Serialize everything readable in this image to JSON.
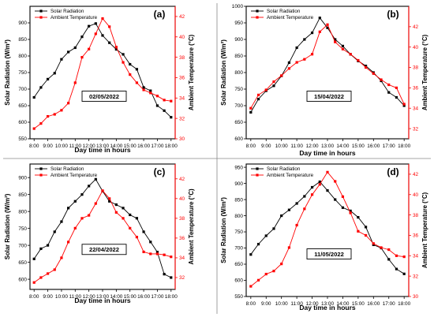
{
  "figure": {
    "divider_color": "#888888"
  },
  "colors": {
    "solar": "#000000",
    "temp": "#ff0000"
  },
  "chart_data": [
    {
      "panel": "(a)",
      "date": "02/05/2022",
      "type": "line",
      "xlabel": "Day time in hours",
      "ylabel_left": "Solar Radiation (W/m²)",
      "ylabel_right": "Ambient Temperature (°C)",
      "legend": [
        "Solar Radiation",
        "Ambient Temperature"
      ],
      "x_ticks": [
        "8:00",
        "9:00",
        "10:00",
        "11:00",
        "12:00",
        "13:00",
        "14:00",
        "15:00",
        "16:00",
        "17:00",
        "18:00"
      ],
      "y_left_range": [
        550,
        950
      ],
      "y_left_ticks": [
        550,
        600,
        650,
        700,
        750,
        800,
        850,
        900
      ],
      "y_right_range": [
        30,
        43
      ],
      "y_right_ticks": [
        30,
        32,
        34,
        36,
        38,
        40,
        42
      ],
      "series": [
        {
          "name": "Solar Radiation",
          "axis": "left",
          "color": "#000000",
          "marker": "square",
          "x": [
            8,
            8.5,
            9,
            9.5,
            10,
            10.5,
            11,
            11.5,
            12,
            12.5,
            13,
            13.5,
            14,
            14.5,
            15,
            15.5,
            16,
            16.5,
            17,
            17.5,
            18
          ],
          "y": [
            675,
            705,
            730,
            748,
            790,
            812,
            825,
            858,
            890,
            898,
            862,
            840,
            820,
            805,
            775,
            760,
            705,
            695,
            650,
            635,
            615
          ]
        },
        {
          "name": "Ambient Temperature",
          "axis": "right",
          "color": "#ff0000",
          "marker": "square",
          "x": [
            8,
            8.5,
            9,
            9.5,
            10,
            10.5,
            11,
            11.5,
            12,
            12.5,
            13,
            13.5,
            14,
            14.5,
            15,
            15.5,
            16,
            16.5,
            17,
            17.5,
            18
          ],
          "y": [
            31.0,
            31.5,
            32.2,
            32.4,
            32.8,
            33.5,
            35.5,
            38.0,
            38.8,
            40.3,
            41.8,
            41.0,
            39.0,
            37.5,
            36.3,
            35.5,
            34.8,
            34.5,
            34.2,
            33.8,
            33.7
          ]
        }
      ]
    },
    {
      "panel": "(b)",
      "date": "15/04/2022",
      "type": "line",
      "xlabel": "Day time in hours",
      "ylabel_left": "Solar Radiation (W/m²)",
      "ylabel_right": "Ambient Temperature (°C)",
      "legend": [
        "Solar Radiation",
        "Ambient Temperature"
      ],
      "x_ticks": [
        "8:00",
        "9:00",
        "10:00",
        "11:00",
        "12:00",
        "13:00",
        "14:00",
        "15:00",
        "16:00",
        "17:00",
        "18:00"
      ],
      "y_left_range": [
        600,
        1000
      ],
      "y_left_ticks": [
        600,
        650,
        700,
        750,
        800,
        850,
        900,
        950,
        1000
      ],
      "y_right_range": [
        31,
        44
      ],
      "y_right_ticks": [
        32,
        34,
        36,
        38,
        40,
        42
      ],
      "series": [
        {
          "name": "Solar Radiation",
          "axis": "left",
          "color": "#000000",
          "marker": "square",
          "x": [
            8,
            8.5,
            9,
            9.5,
            10,
            10.5,
            11,
            11.5,
            12,
            12.5,
            13,
            13.5,
            14,
            14.5,
            15,
            15.5,
            16,
            16.5,
            17,
            17.5,
            18
          ],
          "y": [
            680,
            720,
            745,
            760,
            790,
            830,
            875,
            900,
            920,
            965,
            935,
            900,
            880,
            855,
            835,
            820,
            800,
            775,
            740,
            725,
            700
          ]
        },
        {
          "name": "Ambient Temperature",
          "axis": "right",
          "color": "#ff0000",
          "marker": "square",
          "x": [
            8,
            8.5,
            9,
            9.5,
            10,
            10.5,
            11,
            11.5,
            12,
            12.5,
            13,
            13.5,
            14,
            14.5,
            15,
            15.5,
            16,
            16.5,
            17,
            17.5,
            18
          ],
          "y": [
            34.0,
            35.3,
            35.8,
            36.6,
            37.2,
            37.9,
            38.5,
            38.8,
            39.3,
            41.5,
            42.2,
            40.5,
            39.8,
            39.3,
            38.7,
            38.0,
            37.4,
            36.8,
            36.3,
            36.0,
            34.4
          ]
        }
      ]
    },
    {
      "panel": "(c)",
      "date": "22/04/2022",
      "type": "line",
      "xlabel": "Day time in hours",
      "ylabel_left": "Solar Radiation (W/m²)",
      "ylabel_right": "Ambient Temperature (°C)",
      "legend": [
        "Solar Radiation",
        "Ambient Temperature"
      ],
      "x_ticks": [
        "8:00",
        "9:00",
        "10:00",
        "11:00",
        "12:00",
        "13:00",
        "14:00",
        "15:00",
        "16:00",
        "17:00",
        "18:00"
      ],
      "y_left_range": [
        570,
        940
      ],
      "y_left_ticks": [
        600,
        650,
        700,
        750,
        800,
        850,
        900
      ],
      "y_right_range": [
        30.8,
        43.5
      ],
      "y_right_ticks": [
        32,
        34,
        36,
        38,
        40,
        42
      ],
      "series": [
        {
          "name": "Solar Radiation",
          "axis": "left",
          "color": "#000000",
          "marker": "square",
          "x": [
            8,
            8.5,
            9,
            9.5,
            10,
            10.5,
            11,
            11.5,
            12,
            12.5,
            13,
            13.5,
            14,
            14.5,
            15,
            15.5,
            16,
            16.5,
            17,
            17.5,
            18
          ],
          "y": [
            660,
            690,
            700,
            740,
            770,
            810,
            830,
            850,
            875,
            895,
            860,
            830,
            820,
            810,
            790,
            780,
            740,
            710,
            680,
            615,
            605
          ]
        },
        {
          "name": "Ambient Temperature",
          "axis": "right",
          "color": "#ff0000",
          "marker": "square",
          "x": [
            8,
            8.5,
            9,
            9.5,
            10,
            10.5,
            11,
            11.5,
            12,
            12.5,
            13,
            13.5,
            14,
            14.5,
            15,
            15.5,
            16,
            16.5,
            17,
            17.5,
            18
          ],
          "y": [
            31.5,
            32.0,
            32.4,
            32.8,
            34.0,
            35.6,
            37.0,
            38.0,
            38.3,
            39.5,
            40.8,
            40.0,
            38.6,
            38.0,
            37.0,
            36.1,
            34.6,
            34.4,
            34.4,
            34.3,
            34.1
          ]
        }
      ]
    },
    {
      "panel": "(d)",
      "date": "11/05/2022",
      "type": "line",
      "xlabel": "Day time in hours",
      "ylabel_left": "Solar Radiation (W/m²)",
      "ylabel_right": "Ambient Temperature (°C)",
      "legend": [
        "Solar Radiation",
        "Ambient Temperature"
      ],
      "x_ticks": [
        "8:00",
        "9:00",
        "10:00",
        "11:00",
        "12:00",
        "13:00",
        "14:00",
        "15:00",
        "16:00",
        "17:00",
        "18:00"
      ],
      "y_left_range": [
        550,
        960
      ],
      "y_left_ticks": [
        550,
        600,
        650,
        700,
        750,
        800,
        850,
        900,
        950
      ],
      "y_right_range": [
        30,
        43
      ],
      "y_right_ticks": [
        30,
        32,
        34,
        36,
        38,
        40,
        42
      ],
      "series": [
        {
          "name": "Solar Radiation",
          "axis": "left",
          "color": "#000000",
          "marker": "square",
          "x": [
            8,
            8.5,
            9,
            9.5,
            10,
            10.5,
            11,
            11.5,
            12,
            12.5,
            13,
            13.5,
            14,
            14.5,
            15,
            15.5,
            16,
            16.5,
            17,
            17.5,
            18
          ],
          "y": [
            680,
            712,
            738,
            760,
            800,
            818,
            838,
            860,
            888,
            905,
            878,
            850,
            825,
            815,
            795,
            765,
            710,
            700,
            665,
            635,
            620
          ]
        },
        {
          "name": "Ambient Temperature",
          "axis": "right",
          "color": "#ff0000",
          "marker": "square",
          "x": [
            8,
            8.5,
            9,
            9.5,
            10,
            10.5,
            11,
            11.5,
            12,
            12.5,
            13,
            13.5,
            14,
            14.5,
            15,
            15.5,
            16,
            16.5,
            17,
            17.5,
            18
          ],
          "y": [
            31.0,
            31.6,
            32.2,
            32.5,
            33.2,
            34.8,
            37.0,
            38.6,
            40.0,
            41.0,
            42.2,
            41.3,
            39.8,
            38.2,
            36.4,
            36.0,
            35.2,
            34.8,
            34.6,
            34.0,
            33.9
          ]
        }
      ]
    }
  ]
}
